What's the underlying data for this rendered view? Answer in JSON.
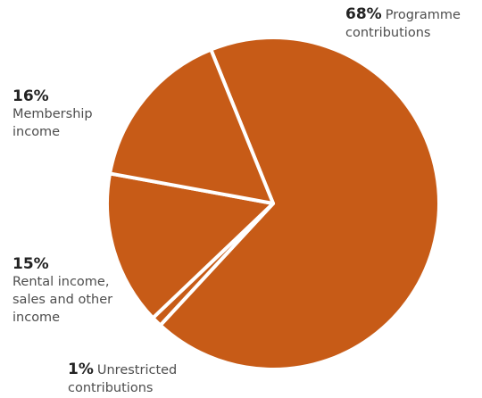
{
  "colors": {
    "slice": "#c75b17",
    "separator": "#ffffff"
  },
  "chart_data": {
    "type": "pie",
    "slices": [
      {
        "name": "Programme contributions",
        "percent_label": "68%",
        "value": 68
      },
      {
        "name": "Unrestricted contributions",
        "percent_label": "1%",
        "value": 1
      },
      {
        "name": "Rental income, sales and other income",
        "percent_label": "15%",
        "value": 15
      },
      {
        "name": "Membership income",
        "percent_label": "16%",
        "value": 16
      }
    ]
  },
  "labels": {
    "programme": {
      "pct": "68%",
      "line1": "Programme",
      "line2": "contributions"
    },
    "unrestricted": {
      "pct": "1%",
      "line1": "Unrestricted",
      "line2": "contributions"
    },
    "rental": {
      "pct": "15%",
      "line1": "Rental income,",
      "line2": "sales and other",
      "line3": "income"
    },
    "membership": {
      "pct": "16%",
      "line1": "Membership",
      "line2": "income"
    }
  }
}
